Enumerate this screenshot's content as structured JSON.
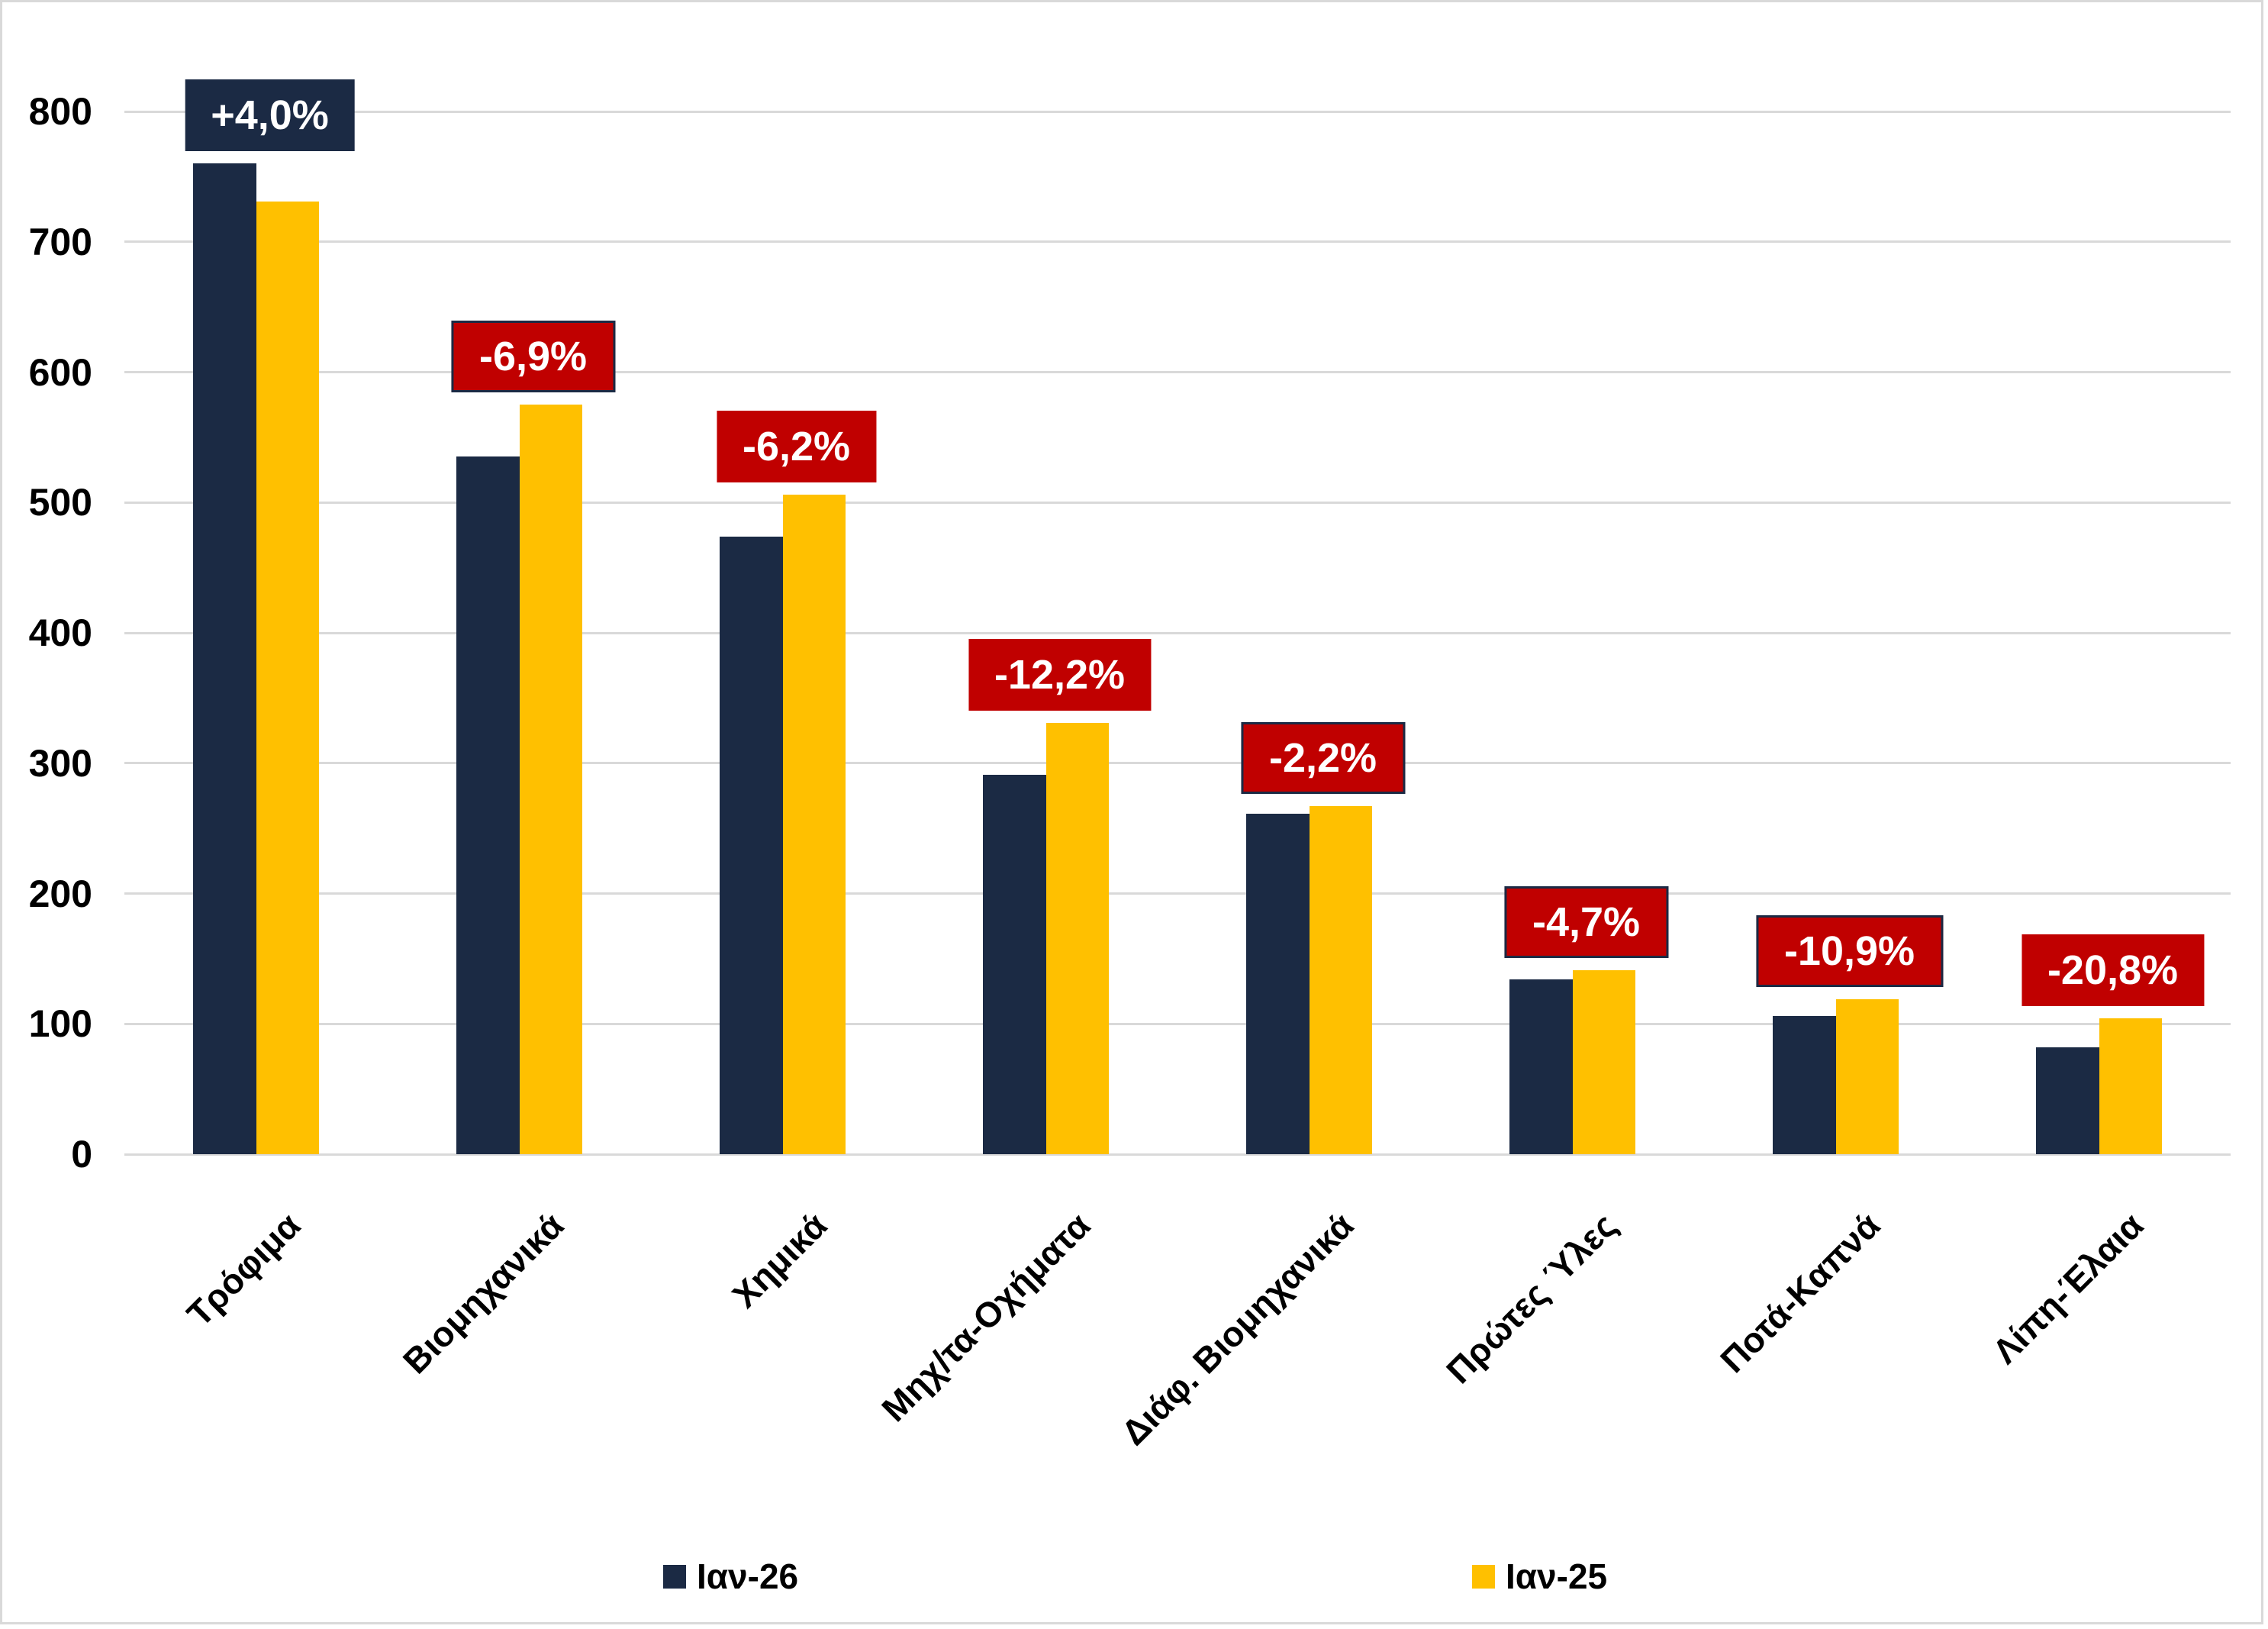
{
  "chart_data": {
    "type": "bar",
    "title": "",
    "categories": [
      "Τρόφιμα",
      "Βιομηχανικά",
      "Χημικά",
      "Μηχ/τα-Οχήματα",
      "Διάφ. Βιομηχανικά",
      "Πρώτες Ύλες",
      "Ποτά-Καπνά",
      "Λίπη-Έλαια"
    ],
    "series": [
      {
        "name": "Ιαν-26",
        "color": "#1B2A44",
        "values": [
          760,
          535,
          474,
          291,
          261,
          134,
          106,
          82
        ]
      },
      {
        "name": "Ιαν-25",
        "color": "#FFC000",
        "values": [
          731,
          575,
          506,
          331,
          267,
          141,
          119,
          104
        ]
      }
    ],
    "annotations": [
      {
        "text": "+4,0%",
        "fill": "#1B2A44",
        "bordered": false
      },
      {
        "text": "-6,9%",
        "fill": "#C00000",
        "bordered": true
      },
      {
        "text": "-6,2%",
        "fill": "#C00000",
        "bordered": false
      },
      {
        "text": "-12,2%",
        "fill": "#C00000",
        "bordered": false
      },
      {
        "text": "-2,2%",
        "fill": "#C00000",
        "bordered": true
      },
      {
        "text": "-4,7%",
        "fill": "#C00000",
        "bordered": true
      },
      {
        "text": "-10,9%",
        "fill": "#C00000",
        "bordered": true
      },
      {
        "text": "-20,8%",
        "fill": "#C00000",
        "bordered": false
      }
    ],
    "ylim": [
      0,
      800
    ],
    "yticks": [
      0,
      100,
      200,
      300,
      400,
      500,
      600,
      700,
      800
    ],
    "grid": true,
    "legend_position": "bottom",
    "xlabel": "",
    "ylabel": ""
  },
  "colors": {
    "bar_navy": "#1B2A44",
    "bar_yellow": "#FFC000",
    "label_red": "#C00000",
    "gridline": "#D9D9D9",
    "text": "#000000",
    "background": "#FFFFFF"
  }
}
